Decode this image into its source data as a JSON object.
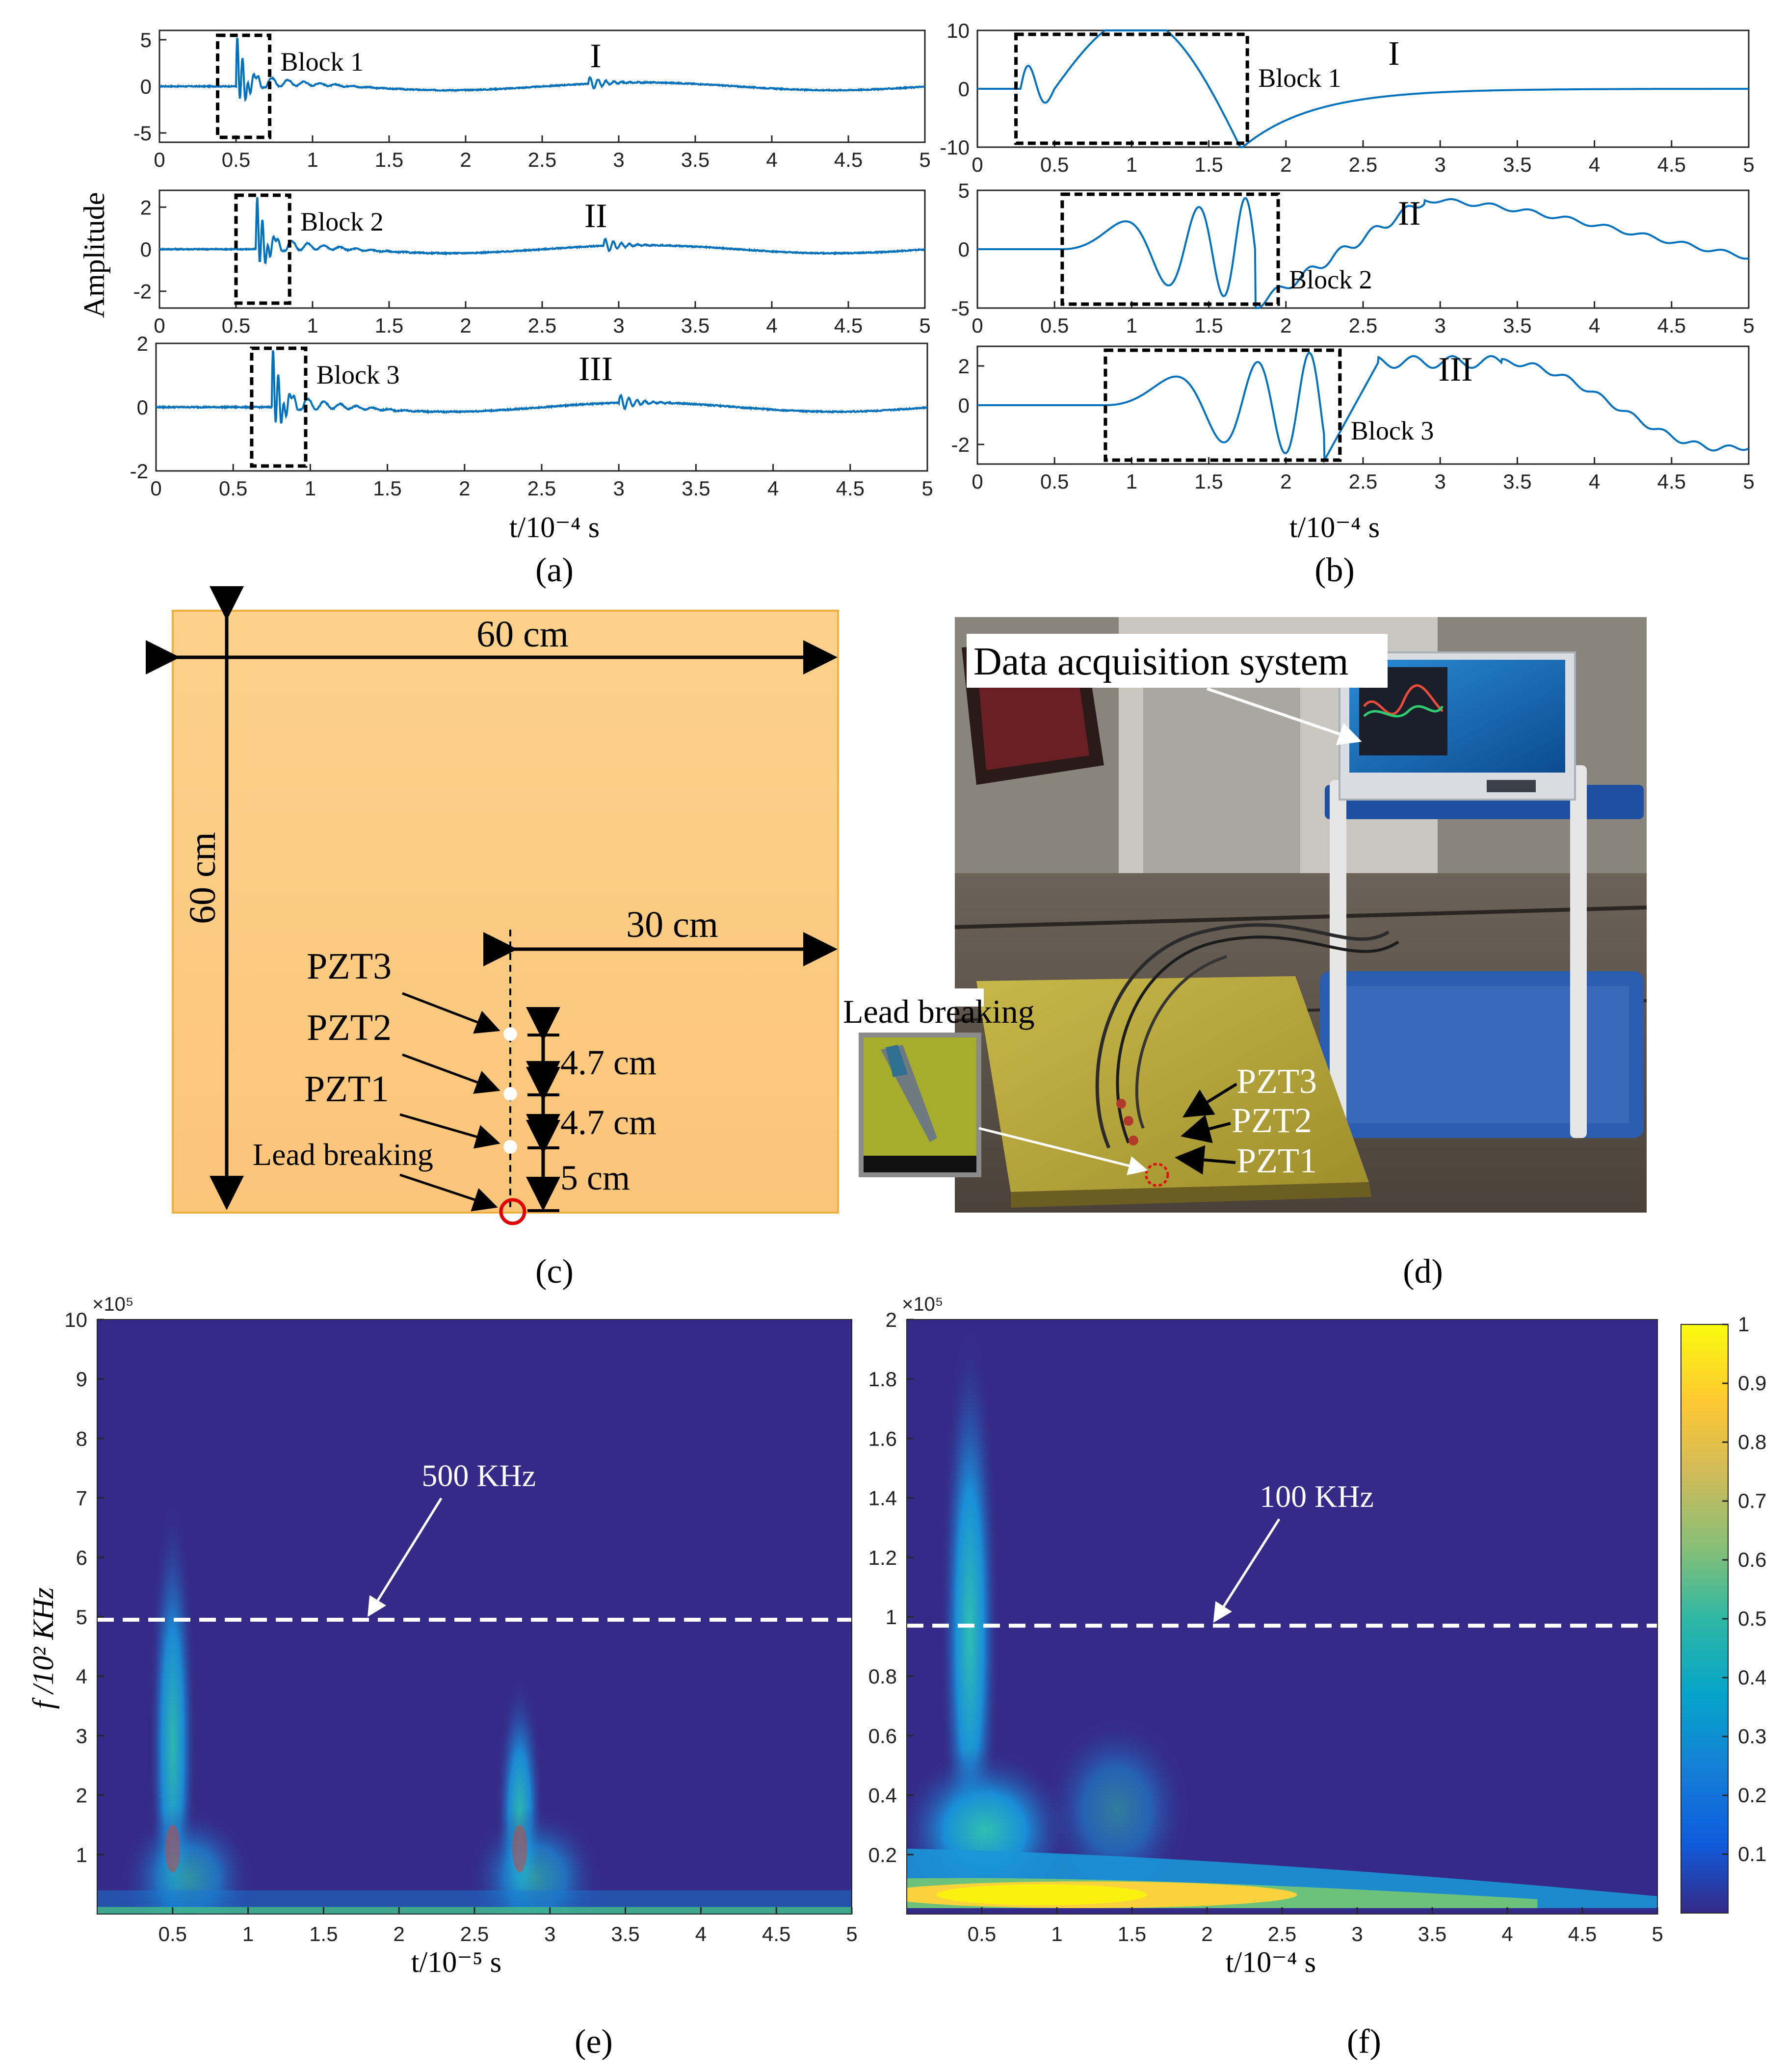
{
  "chart_data": [
    {
      "id": "a",
      "type": "line",
      "caption": "(a)",
      "xlabel": "t/10⁻⁴ s",
      "ylabel": "Amplitude",
      "subplots": [
        {
          "label": "I",
          "block": "Block 1",
          "ylim": [
            -6,
            6
          ],
          "yticks": [
            "5",
            "0",
            "-5"
          ],
          "yvals": [
            5,
            0,
            -5
          ],
          "xticks": [
            "0",
            "0.5",
            "1",
            "1.5",
            "2",
            "2.5",
            "3",
            "3.5",
            "4",
            "4.5",
            "5"
          ],
          "burst_t": 0.5,
          "burst_amp": 5.2,
          "event2_t": 2.8,
          "block_range": [
            0.38,
            0.72
          ]
        },
        {
          "label": "II",
          "block": "Block 2",
          "ylim": [
            -2.8,
            2.8
          ],
          "yticks": [
            "2",
            "0",
            "-2"
          ],
          "yvals": [
            2,
            0,
            -2
          ],
          "xticks": [
            "0",
            "0.5",
            "1",
            "1.5",
            "2",
            "2.5",
            "3",
            "3.5",
            "4",
            "4.5",
            "5"
          ],
          "burst_t": 0.63,
          "burst_amp": 2.4,
          "event2_t": 2.9,
          "block_range": [
            0.5,
            0.85
          ]
        },
        {
          "label": "III",
          "block": "Block 3",
          "ylim": [
            -2,
            2
          ],
          "yticks": [
            "2",
            "0",
            "-2"
          ],
          "yvals": [
            2,
            0,
            -2
          ],
          "xticks": [
            "0",
            "0.5",
            "1",
            "1.5",
            "2",
            "2.5",
            "3",
            "3.5",
            "4",
            "4.5",
            "5"
          ],
          "burst_t": 0.75,
          "burst_amp": 1.8,
          "event2_t": 3.0,
          "block_range": [
            0.62,
            0.97
          ]
        }
      ]
    },
    {
      "id": "b",
      "type": "line",
      "caption": "(b)",
      "xlabel": "t/10⁻⁴ s",
      "ylabel": "",
      "subplots": [
        {
          "label": "I",
          "block": "Block 1",
          "ylim": [
            -10,
            10
          ],
          "yticks": [
            "10",
            "0",
            "-10"
          ],
          "yvals": [
            10,
            0,
            -10
          ],
          "xticks": [
            "0",
            "0.5",
            "1",
            "1.5",
            "2",
            "2.5",
            "3",
            "3.5",
            "4",
            "4.5",
            "5"
          ],
          "block_range": [
            0.25,
            1.75
          ]
        },
        {
          "label": "II",
          "block": "Block 2",
          "ylim": [
            -5,
            5
          ],
          "yticks": [
            "5",
            "0",
            "-5"
          ],
          "yvals": [
            5,
            0,
            -5
          ],
          "xticks": [
            "0",
            "0.5",
            "1",
            "1.5",
            "2",
            "2.5",
            "3",
            "3.5",
            "4",
            "4.5",
            "5"
          ],
          "block_range": [
            0.55,
            1.95
          ]
        },
        {
          "label": "III",
          "block": "Block 3",
          "ylim": [
            -3,
            3
          ],
          "yticks": [
            "2",
            "0",
            "-2"
          ],
          "yvals": [
            2,
            0,
            -2
          ],
          "xticks": [
            "0",
            "0.5",
            "1",
            "1.5",
            "2",
            "2.5",
            "3",
            "3.5",
            "4",
            "4.5",
            "5"
          ],
          "block_range": [
            0.83,
            2.35
          ]
        }
      ]
    },
    {
      "id": "e",
      "type": "heatmap",
      "caption": "(e)",
      "xlabel": "t/10⁻⁵ s",
      "ylabel": "f /10² KHz",
      "y_exponent": "×10⁵",
      "xlim": [
        0,
        5
      ],
      "ylim": [
        0,
        10
      ],
      "xticks": [
        "0.5",
        "1",
        "1.5",
        "2",
        "2.5",
        "3",
        "3.5",
        "4",
        "4.5",
        "5"
      ],
      "xvals": [
        0.5,
        1,
        1.5,
        2,
        2.5,
        3,
        3.5,
        4,
        4.5,
        5
      ],
      "yticks": [
        "1",
        "2",
        "3",
        "4",
        "5",
        "6",
        "7",
        "8",
        "9",
        "10"
      ],
      "yvals": [
        1,
        2,
        3,
        4,
        5,
        6,
        7,
        8,
        9,
        10
      ],
      "dashed_line": 4.95,
      "annotation": "500 KHz"
    },
    {
      "id": "f",
      "type": "heatmap",
      "caption": "(f)",
      "xlabel": "t/10⁻⁴ s",
      "ylabel": "",
      "y_exponent": "×10⁵",
      "xlim": [
        0,
        5
      ],
      "ylim": [
        0,
        2
      ],
      "xticks": [
        "0.5",
        "1",
        "1.5",
        "2",
        "2.5",
        "3",
        "3.5",
        "4",
        "4.5",
        "5"
      ],
      "xvals": [
        0.5,
        1,
        1.5,
        2,
        2.5,
        3,
        3.5,
        4,
        4.5,
        5
      ],
      "yticks": [
        "0.2",
        "0.4",
        "0.6",
        "0.8",
        "1",
        "1.2",
        "1.4",
        "1.6",
        "1.8",
        "2"
      ],
      "yvals": [
        0.2,
        0.4,
        0.6,
        0.8,
        1,
        1.2,
        1.4,
        1.6,
        1.8,
        2
      ],
      "dashed_line": 0.97,
      "annotation": "100 KHz",
      "colorbar": {
        "ticks": [
          "0.1",
          "0.2",
          "0.3",
          "0.4",
          "0.5",
          "0.6",
          "0.7",
          "0.8",
          "0.9",
          "1"
        ],
        "vals": [
          0.1,
          0.2,
          0.3,
          0.4,
          0.5,
          0.6,
          0.7,
          0.8,
          0.9,
          1
        ]
      }
    }
  ],
  "diagram_c": {
    "caption": "(c)",
    "width_label": "60 cm",
    "height_label": "60 cm",
    "half_label": "30 cm",
    "spacing_1": "4.7 cm",
    "spacing_2": "4.7 cm",
    "spacing_3": "5 cm",
    "sensors": [
      "PZT3",
      "PZT2",
      "PZT1"
    ],
    "source": "Lead breaking"
  },
  "photo_d": {
    "caption": "(d)",
    "daq_label": "Data acquisition system",
    "inset_label": "Lead breaking",
    "sensors": [
      "PZT3",
      "PZT2",
      "PZT1"
    ]
  },
  "colors": {
    "signal": "#0072bd",
    "plate": "#fbd28e",
    "plate_border": "#f0b040",
    "heat_bg": "#352a87",
    "dash": "#ffffff"
  }
}
